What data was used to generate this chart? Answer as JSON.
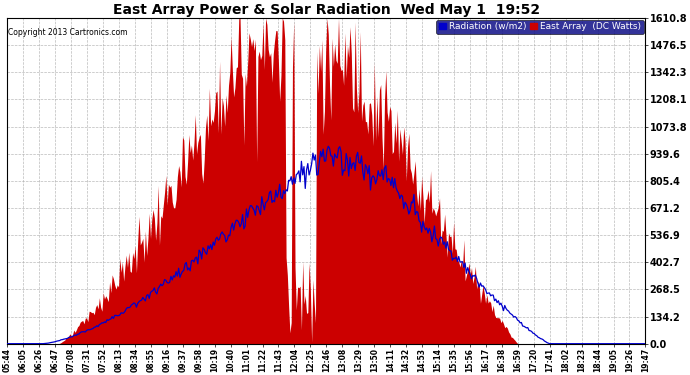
{
  "title": "East Array Power & Solar Radiation  Wed May 1  19:52",
  "copyright": "Copyright 2013 Cartronics.com",
  "legend_labels": [
    "Radiation (w/m2)",
    "East Array  (DC Watts)"
  ],
  "legend_colors": [
    "#0000cc",
    "#cc0000"
  ],
  "legend_bg": "#000080",
  "ylabel_right_values": [
    0.0,
    134.2,
    268.5,
    402.7,
    536.9,
    671.2,
    805.4,
    939.6,
    1073.8,
    1208.1,
    1342.3,
    1476.5,
    1610.8
  ],
  "x_tick_labels": [
    "05:44",
    "06:05",
    "06:26",
    "06:47",
    "07:08",
    "07:31",
    "07:52",
    "08:13",
    "08:34",
    "08:55",
    "09:16",
    "09:37",
    "09:58",
    "10:19",
    "10:40",
    "11:01",
    "11:22",
    "11:43",
    "12:04",
    "12:25",
    "12:46",
    "13:08",
    "13:29",
    "13:50",
    "14:11",
    "14:32",
    "14:53",
    "15:14",
    "15:35",
    "15:56",
    "16:17",
    "16:38",
    "16:59",
    "17:20",
    "17:41",
    "18:02",
    "18:23",
    "18:44",
    "19:05",
    "19:26",
    "19:47"
  ],
  "bg_color": "#ffffff",
  "plot_bg": "#ffffff",
  "grid_color": "#aaaaaa",
  "area_color": "#cc0000",
  "line_color": "#0000cc",
  "ymax": 1610.8,
  "ymin": 0.0
}
